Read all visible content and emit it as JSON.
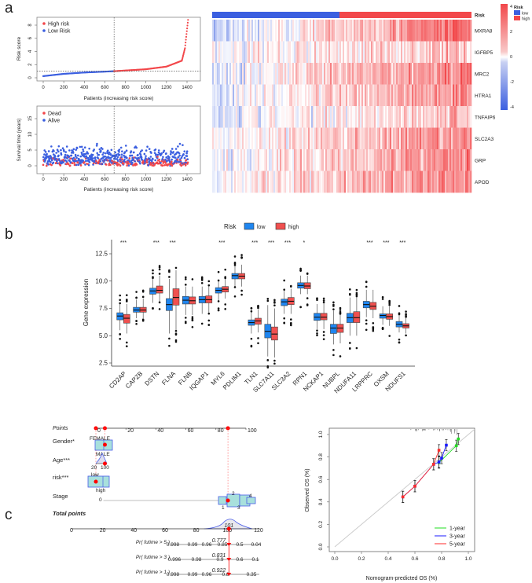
{
  "panel_labels": {
    "a": "a",
    "b": "b",
    "c": "c"
  },
  "chart_data": [
    {
      "id": "risk_score",
      "type": "scatter",
      "xlabel": "Patients (increasing risk score)",
      "ylabel": "Risk score",
      "xlim": [
        0,
        1400
      ],
      "ylim": [
        0,
        9
      ],
      "xticks": [
        "0",
        "200",
        "400",
        "600",
        "800",
        "1000",
        "1200",
        "1400"
      ],
      "yticks": [
        "0",
        "2",
        "4",
        "6",
        "8"
      ],
      "legend": [
        "High risk",
        "Low Risk"
      ],
      "colors": {
        "high": "#f2474a",
        "low": "#3b5fe0"
      },
      "cutoff_patient": 690,
      "cutoff_score": 1.0,
      "n_patients": 1410,
      "curve_points": [
        [
          0,
          0.25
        ],
        [
          200,
          0.6
        ],
        [
          400,
          0.8
        ],
        [
          690,
          1.0
        ],
        [
          1000,
          1.3
        ],
        [
          1200,
          1.7
        ],
        [
          1350,
          2.6
        ],
        [
          1380,
          4.5
        ],
        [
          1410,
          8.8
        ]
      ]
    },
    {
      "id": "survival_status",
      "type": "scatter",
      "xlabel": "Patients (increasing risk score)",
      "ylabel": "Survival time (years)",
      "xlim": [
        0,
        1400
      ],
      "ylim": [
        0,
        17
      ],
      "xticks": [
        "0",
        "200",
        "400",
        "600",
        "800",
        "1000",
        "1200",
        "1400"
      ],
      "yticks": [
        "0",
        "5",
        "10",
        "15"
      ],
      "legend": [
        "Dead",
        "Alive"
      ],
      "colors": {
        "dead": "#f2474a",
        "alive": "#3b5fe0"
      },
      "cutoff_patient": 690
    },
    {
      "id": "heatmap",
      "type": "heatmap",
      "annotation_label": "Risk",
      "genes": [
        "MXRA8",
        "IGFBP5",
        "MRC2",
        "HTRA1",
        "TNFAIP6",
        "SLC2A3",
        "GRP",
        "APOD"
      ],
      "gene_trend": [
        2.2,
        0.8,
        1.8,
        1.6,
        1.0,
        1.2,
        1.6,
        1.3
      ],
      "gene_base": [
        0.9,
        0.5,
        0.9,
        0.8,
        0.4,
        0.9,
        1.0,
        1.0
      ],
      "colorbar_ticks": [
        "4",
        "2",
        "0",
        "-2",
        "-4"
      ],
      "colorbar_range": [
        -4,
        4
      ],
      "legend_title": "Risk",
      "legend": [
        "low",
        "high"
      ],
      "low_fraction": 0.49,
      "colors": {
        "low": "#3b5fe0",
        "mid": "#ffffff",
        "high": "#f2474a"
      }
    },
    {
      "id": "boxplot",
      "type": "box",
      "ylabel": "Gene expression",
      "ylim": [
        2.2,
        13.6
      ],
      "yticks": [
        "2.5",
        "5.0",
        "7.5",
        "10.0",
        "12.5"
      ],
      "legend_title": "Risk",
      "legend": [
        "low",
        "high"
      ],
      "colors": {
        "low": "#1f86f0",
        "high": "#f0504f"
      },
      "categories": [
        "CD2AP",
        "CAPZB",
        "DSTN",
        "FLNA",
        "FLNB",
        "IQGAP1",
        "MYL6",
        "PDLIM1",
        "TLN1",
        "SLC7A11",
        "SLC3A2",
        "RPN1",
        "NCKAP1",
        "NUBPL",
        "NDUFA11",
        "LRPPRC",
        "OXSM",
        "NDUFS1"
      ],
      "significance": [
        "***",
        "",
        "***",
        "***",
        "",
        "",
        "***",
        "",
        "***",
        "***",
        "***",
        "*",
        "",
        "",
        "",
        "***",
        "***",
        "***"
      ],
      "series": [
        {
          "name": "low",
          "stats": [
            [
              5.5,
              6.45,
              6.8,
              7.1,
              7.9
            ],
            [
              6.6,
              7.15,
              7.35,
              7.6,
              8.3
            ],
            [
              8.0,
              8.8,
              9.1,
              9.35,
              10.2
            ],
            [
              5.2,
              7.3,
              7.85,
              8.4,
              10.2
            ],
            [
              6.9,
              7.9,
              8.25,
              8.6,
              9.5
            ],
            [
              7.0,
              8.0,
              8.3,
              8.6,
              9.5
            ],
            [
              8.2,
              8.9,
              9.15,
              9.4,
              10.0
            ],
            [
              9.5,
              10.2,
              10.5,
              10.7,
              11.4
            ],
            [
              5.2,
              5.95,
              6.2,
              6.45,
              7.2
            ],
            [
              3.1,
              4.8,
              5.4,
              6.05,
              7.8
            ],
            [
              7.0,
              7.75,
              8.1,
              8.35,
              9.2
            ],
            [
              8.8,
              9.35,
              9.6,
              9.85,
              10.5
            ],
            [
              5.6,
              6.4,
              6.7,
              7.05,
              7.9
            ],
            [
              4.2,
              5.2,
              5.7,
              6.05,
              7.3
            ],
            [
              5.0,
              6.2,
              6.65,
              7.05,
              8.5
            ],
            [
              6.7,
              7.55,
              7.85,
              8.15,
              9.2
            ],
            [
              6.0,
              6.6,
              6.85,
              7.0,
              7.7
            ],
            [
              5.3,
              5.8,
              6.05,
              6.3,
              6.9
            ]
          ]
        },
        {
          "name": "high",
          "stats": [
            [
              5.2,
              6.15,
              6.6,
              6.95,
              7.9
            ],
            [
              6.6,
              7.15,
              7.35,
              7.6,
              8.4
            ],
            [
              8.1,
              8.9,
              9.15,
              9.55,
              10.5
            ],
            [
              5.5,
              7.8,
              8.5,
              9.3,
              11.0
            ],
            [
              6.9,
              7.9,
              8.2,
              8.55,
              9.5
            ],
            [
              7.1,
              8.0,
              8.3,
              8.65,
              9.6
            ],
            [
              8.4,
              9.0,
              9.25,
              9.5,
              10.2
            ],
            [
              9.5,
              10.2,
              10.45,
              10.7,
              11.5
            ],
            [
              5.3,
              6.05,
              6.35,
              6.6,
              7.4
            ],
            [
              3.0,
              4.6,
              5.15,
              5.8,
              7.5
            ],
            [
              7.0,
              7.85,
              8.15,
              8.5,
              9.3
            ],
            [
              8.8,
              9.3,
              9.55,
              9.85,
              10.5
            ],
            [
              5.6,
              6.45,
              6.7,
              7.05,
              8.0
            ],
            [
              4.3,
              5.3,
              5.7,
              6.05,
              7.0
            ],
            [
              5.0,
              6.2,
              6.65,
              7.2,
              8.6
            ],
            [
              6.6,
              7.4,
              7.7,
              8.05,
              9.2
            ],
            [
              5.9,
              6.5,
              6.75,
              7.0,
              7.7
            ],
            [
              5.2,
              5.7,
              5.9,
              6.1,
              6.7
            ]
          ]
        }
      ]
    },
    {
      "id": "nomogram",
      "type": "table",
      "points_label": "Points",
      "points_ticks": [
        "0",
        "20",
        "40",
        "60",
        "80",
        "100"
      ],
      "selected_points": [
        0,
        6,
        88
      ],
      "rows": [
        {
          "label": "Gender*",
          "levels": [
            "FEMALE",
            "MALE"
          ],
          "points": 6
        },
        {
          "label": "Age***",
          "levels": [
            "20",
            "100"
          ],
          "points": 6
        },
        {
          "label": "risk***",
          "levels": [
            "low",
            "high"
          ],
          "points": 0
        },
        {
          "label": "Stage",
          "levels": [
            "0",
            "1",
            "2",
            "3",
            "4"
          ],
          "points": 88
        }
      ],
      "total_label": "Total points",
      "total_ticks": [
        "0",
        "20",
        "40",
        "60",
        "80",
        "100",
        "120"
      ],
      "total_value": "101",
      "probabilities": [
        {
          "label": "Pr( futime > 5 )",
          "ticks": [
            "0.998",
            "0.99",
            "0.96",
            "0.85",
            "0.5",
            "0.04"
          ],
          "value": "0.777"
        },
        {
          "label": "Pr( futime > 3 )",
          "ticks": [
            "0.996",
            "0.98",
            "0.9",
            "0.6",
            "0.1"
          ],
          "value": "0.831"
        },
        {
          "label": "Pr( futime > 1 )",
          "ticks": [
            "0.998",
            "0.99",
            "0.96",
            "0.8",
            "0.35"
          ],
          "value": "0.922"
        }
      ]
    },
    {
      "id": "calibration",
      "type": "line",
      "xlabel": "Nomogram-predicted OS (%)",
      "ylabel": "Observed OS (%)",
      "xlim": [
        0,
        1
      ],
      "ylim": [
        0,
        1
      ],
      "xticks": [
        "0.0",
        "0.2",
        "0.4",
        "0.6",
        "0.8",
        "1.0"
      ],
      "yticks": [
        "0.0",
        "0.2",
        "0.4",
        "0.6",
        "0.8",
        "1.0"
      ],
      "legend_position": "bottom-right",
      "series": [
        {
          "name": "1-year",
          "color": "#22dd22",
          "points": [
            [
              0.78,
              0.75
            ],
            [
              0.91,
              0.9
            ],
            [
              0.925,
              0.96
            ]
          ]
        },
        {
          "name": "3-year",
          "color": "#1a1aff",
          "points": [
            [
              0.51,
              0.445
            ],
            [
              0.6,
              0.54
            ],
            [
              0.74,
              0.735
            ],
            [
              0.78,
              0.755
            ],
            [
              0.8,
              0.79
            ],
            [
              0.835,
              0.905
            ]
          ]
        },
        {
          "name": "5-year",
          "color": "#ff2a2a",
          "points": [
            [
              0.51,
              0.445
            ],
            [
              0.6,
              0.54
            ],
            [
              0.74,
              0.735
            ],
            [
              0.78,
              0.86
            ]
          ]
        }
      ],
      "error_halfwidth": 0.05
    }
  ]
}
